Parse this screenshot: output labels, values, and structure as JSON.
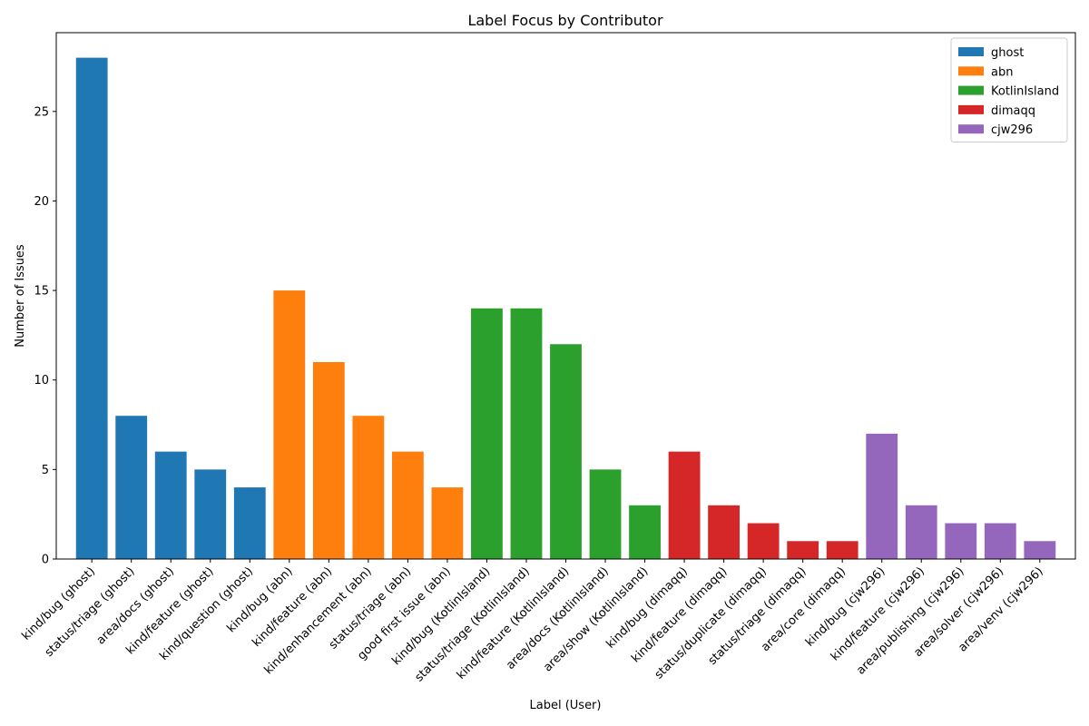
{
  "chart_data": {
    "type": "bar",
    "title": "Label Focus by Contributor",
    "xlabel": "Label (User)",
    "ylabel": "Number of Issues",
    "ylim": [
      0,
      29.4
    ],
    "yticks": [
      0,
      5,
      10,
      15,
      20,
      25
    ],
    "grid": false,
    "legend_position": "top-right",
    "series": [
      {
        "name": "ghost",
        "color": "#1f77b4",
        "categories": [
          "kind/bug (ghost)",
          "status/triage (ghost)",
          "area/docs (ghost)",
          "kind/feature (ghost)",
          "kind/question (ghost)"
        ],
        "values": [
          28,
          8,
          6,
          5,
          4
        ]
      },
      {
        "name": "abn",
        "color": "#ff7f0e",
        "categories": [
          "kind/bug (abn)",
          "kind/feature (abn)",
          "kind/enhancement (abn)",
          "status/triage (abn)",
          "good first issue (abn)"
        ],
        "values": [
          15,
          11,
          8,
          6,
          4
        ]
      },
      {
        "name": "KotlinIsland",
        "color": "#2ca02c",
        "categories": [
          "kind/bug (KotlinIsland)",
          "status/triage (KotlinIsland)",
          "kind/feature (KotlinIsland)",
          "area/docs (KotlinIsland)",
          "area/show (KotlinIsland)"
        ],
        "values": [
          14,
          14,
          12,
          5,
          3
        ]
      },
      {
        "name": "dimaqq",
        "color": "#d62728",
        "categories": [
          "kind/bug (dimaqq)",
          "kind/feature (dimaqq)",
          "status/duplicate (dimaqq)",
          "status/triage (dimaqq)",
          "area/core (dimaqq)"
        ],
        "values": [
          6,
          3,
          2,
          1,
          1
        ]
      },
      {
        "name": "cjw296",
        "color": "#9467bd",
        "categories": [
          "kind/bug (cjw296)",
          "kind/feature (cjw296)",
          "area/publishing (cjw296)",
          "area/solver (cjw296)",
          "area/venv (cjw296)"
        ],
        "values": [
          7,
          3,
          2,
          2,
          1
        ]
      }
    ]
  }
}
